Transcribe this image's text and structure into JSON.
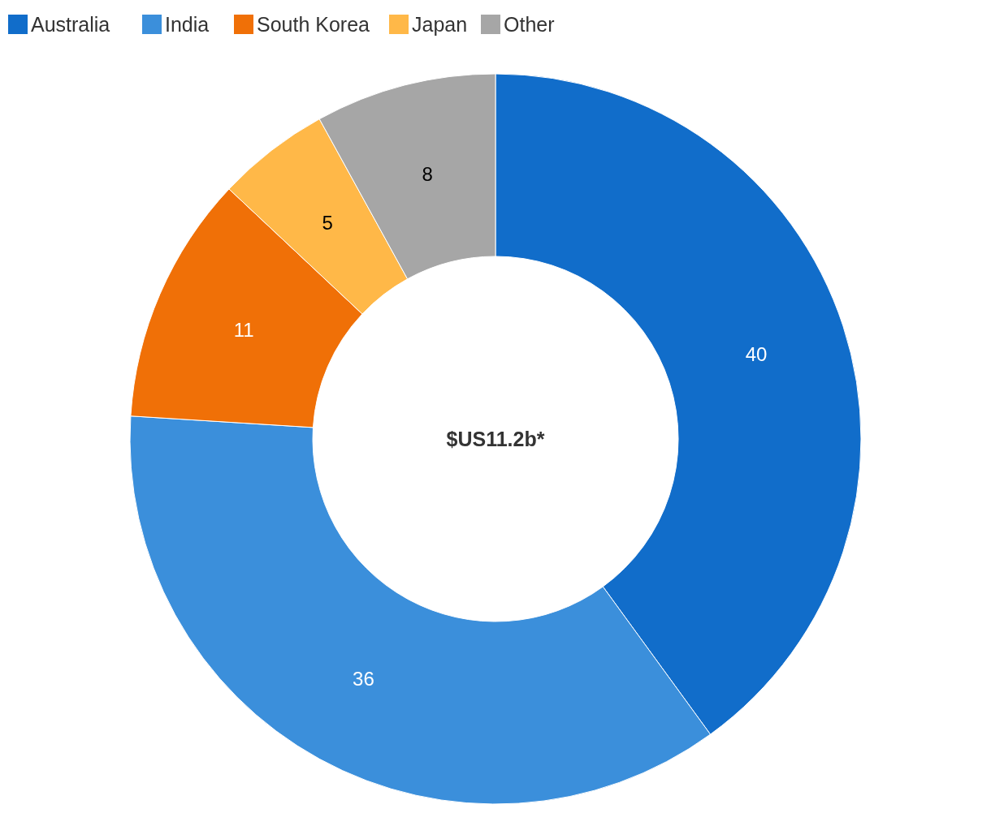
{
  "chart_data": {
    "type": "donut",
    "categories": [
      "Australia",
      "India",
      "South Korea",
      "Japan",
      "Other"
    ],
    "values": [
      40,
      36,
      11,
      5,
      8
    ],
    "colors": [
      "#116dca",
      "#3b8fdb",
      "#f07007",
      "#ffb848",
      "#a6a6a6"
    ],
    "data_labels": true,
    "legend": "top left",
    "annotations": [
      "$US11.2b*"
    ]
  }
}
